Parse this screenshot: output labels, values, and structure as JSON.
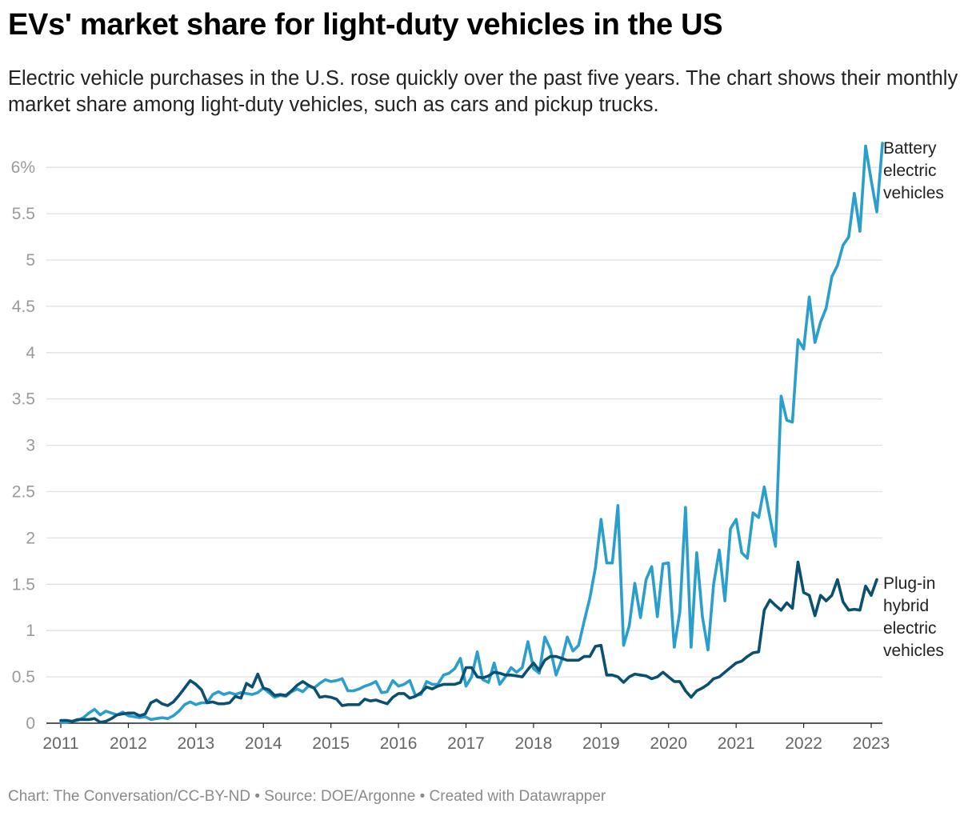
{
  "title": "EVs' market share for light-duty vehicles in the US",
  "subtitle": "Electric vehicle purchases in the U.S. rose quickly over the past five years. The chart shows their monthly market share among light-duty vehicles, such as cars and pickup trucks.",
  "footer": "Chart: The Conversation/CC-BY-ND • Source: DOE/Argonne • Created with Datawrapper",
  "chart_data": {
    "type": "line",
    "title": "EVs' market share for light-duty vehicles in the US",
    "xlabel": "",
    "ylabel": "",
    "xlim": [
      2011.0,
      2023.0
    ],
    "ylim": [
      0,
      6.5
    ],
    "y_ticks": [
      {
        "value": 0,
        "label": "0"
      },
      {
        "value": 0.5,
        "label": "0.5"
      },
      {
        "value": 1,
        "label": "1"
      },
      {
        "value": 1.5,
        "label": "1.5"
      },
      {
        "value": 2,
        "label": "2"
      },
      {
        "value": 2.5,
        "label": "2.5"
      },
      {
        "value": 3,
        "label": "3"
      },
      {
        "value": 3.5,
        "label": "3.5"
      },
      {
        "value": 4,
        "label": "4"
      },
      {
        "value": 4.5,
        "label": "4.5"
      },
      {
        "value": 5,
        "label": "5"
      },
      {
        "value": 5.5,
        "label": "5.5"
      },
      {
        "value": 6,
        "label": "6%"
      }
    ],
    "x_ticks": [
      "2011",
      "2012",
      "2013",
      "2014",
      "2015",
      "2016",
      "2017",
      "2018",
      "2019",
      "2020",
      "2021",
      "2022",
      "2023"
    ],
    "grid": true,
    "series": [
      {
        "name": "Battery electric vehicles",
        "label_lines": [
          "Battery",
          "electric",
          "vehicles"
        ],
        "color": "#2b9fcb",
        "start": 2011.0,
        "step": 0.0833333,
        "values": [
          0.01,
          0.01,
          0.02,
          0.03,
          0.06,
          0.11,
          0.15,
          0.09,
          0.13,
          0.11,
          0.09,
          0.12,
          0.08,
          0.07,
          0.06,
          0.07,
          0.04,
          0.05,
          0.06,
          0.05,
          0.08,
          0.13,
          0.2,
          0.23,
          0.2,
          0.22,
          0.22,
          0.31,
          0.34,
          0.31,
          0.33,
          0.31,
          0.33,
          0.32,
          0.31,
          0.33,
          0.38,
          0.33,
          0.28,
          0.3,
          0.29,
          0.34,
          0.37,
          0.34,
          0.4,
          0.38,
          0.43,
          0.47,
          0.45,
          0.46,
          0.48,
          0.35,
          0.35,
          0.37,
          0.4,
          0.42,
          0.45,
          0.33,
          0.34,
          0.46,
          0.4,
          0.42,
          0.46,
          0.3,
          0.31,
          0.45,
          0.42,
          0.42,
          0.52,
          0.54,
          0.59,
          0.7,
          0.4,
          0.5,
          0.77,
          0.47,
          0.44,
          0.65,
          0.42,
          0.5,
          0.6,
          0.55,
          0.6,
          0.88,
          0.59,
          0.54,
          0.93,
          0.8,
          0.52,
          0.68,
          0.93,
          0.78,
          0.84,
          1.1,
          1.35,
          1.68,
          2.2,
          1.73,
          1.73,
          2.35,
          0.84,
          1.05,
          1.51,
          1.14,
          1.55,
          1.69,
          1.15,
          1.72,
          1.73,
          0.82,
          1.2,
          2.33,
          0.82,
          1.84,
          1.15,
          0.79,
          1.5,
          1.87,
          1.32,
          2.1,
          2.2,
          1.84,
          1.78,
          2.27,
          2.22,
          2.55,
          2.22,
          1.91,
          3.53,
          3.27,
          3.25,
          4.14,
          4.04,
          4.6,
          4.11,
          4.33,
          4.48,
          4.82,
          4.94,
          5.16,
          5.25,
          5.72,
          5.31,
          6.23,
          5.86,
          5.52,
          6.26
        ]
      },
      {
        "name": "Plug-in hybrid electric vehicles",
        "label_lines": [
          "Plug-in",
          "hybrid",
          "electric",
          "vehicles"
        ],
        "color": "#0b4f71",
        "start": 2011.0,
        "step": 0.0833333,
        "values": [
          0.03,
          0.03,
          0.02,
          0.04,
          0.04,
          0.04,
          0.05,
          0.01,
          0.02,
          0.05,
          0.09,
          0.1,
          0.11,
          0.11,
          0.08,
          0.1,
          0.22,
          0.25,
          0.21,
          0.19,
          0.23,
          0.3,
          0.38,
          0.46,
          0.42,
          0.36,
          0.22,
          0.23,
          0.21,
          0.21,
          0.22,
          0.29,
          0.27,
          0.43,
          0.39,
          0.53,
          0.38,
          0.36,
          0.3,
          0.31,
          0.3,
          0.35,
          0.41,
          0.45,
          0.41,
          0.38,
          0.28,
          0.29,
          0.28,
          0.26,
          0.19,
          0.2,
          0.2,
          0.2,
          0.26,
          0.24,
          0.25,
          0.23,
          0.21,
          0.28,
          0.32,
          0.32,
          0.27,
          0.29,
          0.33,
          0.39,
          0.37,
          0.4,
          0.42,
          0.42,
          0.42,
          0.44,
          0.6,
          0.6,
          0.5,
          0.49,
          0.51,
          0.55,
          0.54,
          0.52,
          0.52,
          0.51,
          0.5,
          0.58,
          0.65,
          0.57,
          0.68,
          0.72,
          0.72,
          0.7,
          0.68,
          0.68,
          0.68,
          0.72,
          0.72,
          0.83,
          0.84,
          0.52,
          0.52,
          0.5,
          0.44,
          0.5,
          0.53,
          0.52,
          0.51,
          0.48,
          0.5,
          0.55,
          0.5,
          0.45,
          0.45,
          0.35,
          0.28,
          0.35,
          0.38,
          0.42,
          0.48,
          0.5,
          0.55,
          0.6,
          0.65,
          0.67,
          0.72,
          0.76,
          0.77,
          1.22,
          1.33,
          1.27,
          1.22,
          1.3,
          1.24,
          1.74,
          1.41,
          1.38,
          1.16,
          1.38,
          1.32,
          1.38,
          1.55,
          1.31,
          1.22,
          1.23,
          1.22,
          1.48,
          1.38,
          1.55
        ]
      }
    ]
  }
}
